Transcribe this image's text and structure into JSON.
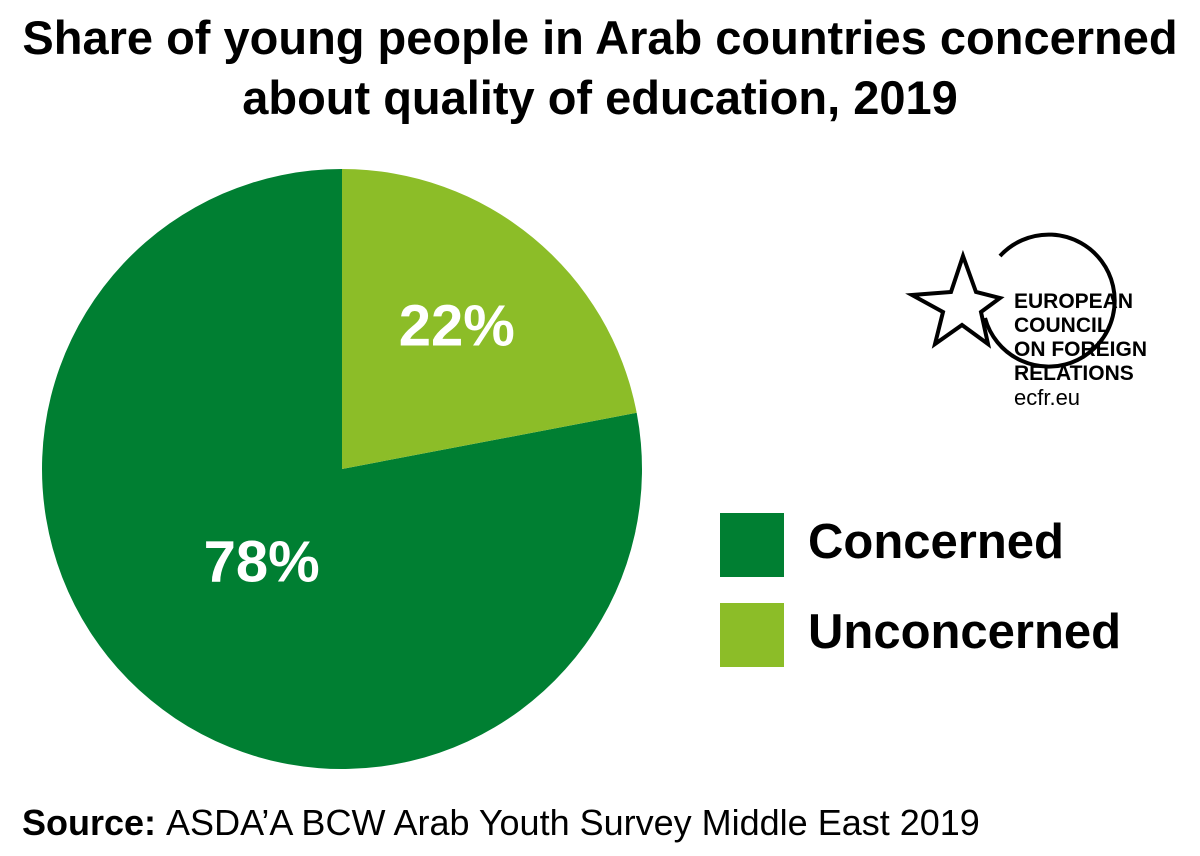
{
  "chart_data": {
    "type": "pie",
    "title": "Share of young people in Arab countries concerned about quality of education, 2019",
    "categories": [
      "Concerned",
      "Unconcerned"
    ],
    "values": [
      78,
      22
    ],
    "value_labels": [
      "78%",
      "22%"
    ],
    "colors": [
      "#007f32",
      "#8cbd28"
    ],
    "legend": "right",
    "source_label": "Source:",
    "source": "ASDA’A BCW Arab Youth Survey Middle East 2019"
  },
  "logo": {
    "lines": [
      "EUROPEAN",
      "COUNCIL",
      "ON FOREIGN",
      "RELATIONS"
    ],
    "url": "ecfr.eu"
  }
}
